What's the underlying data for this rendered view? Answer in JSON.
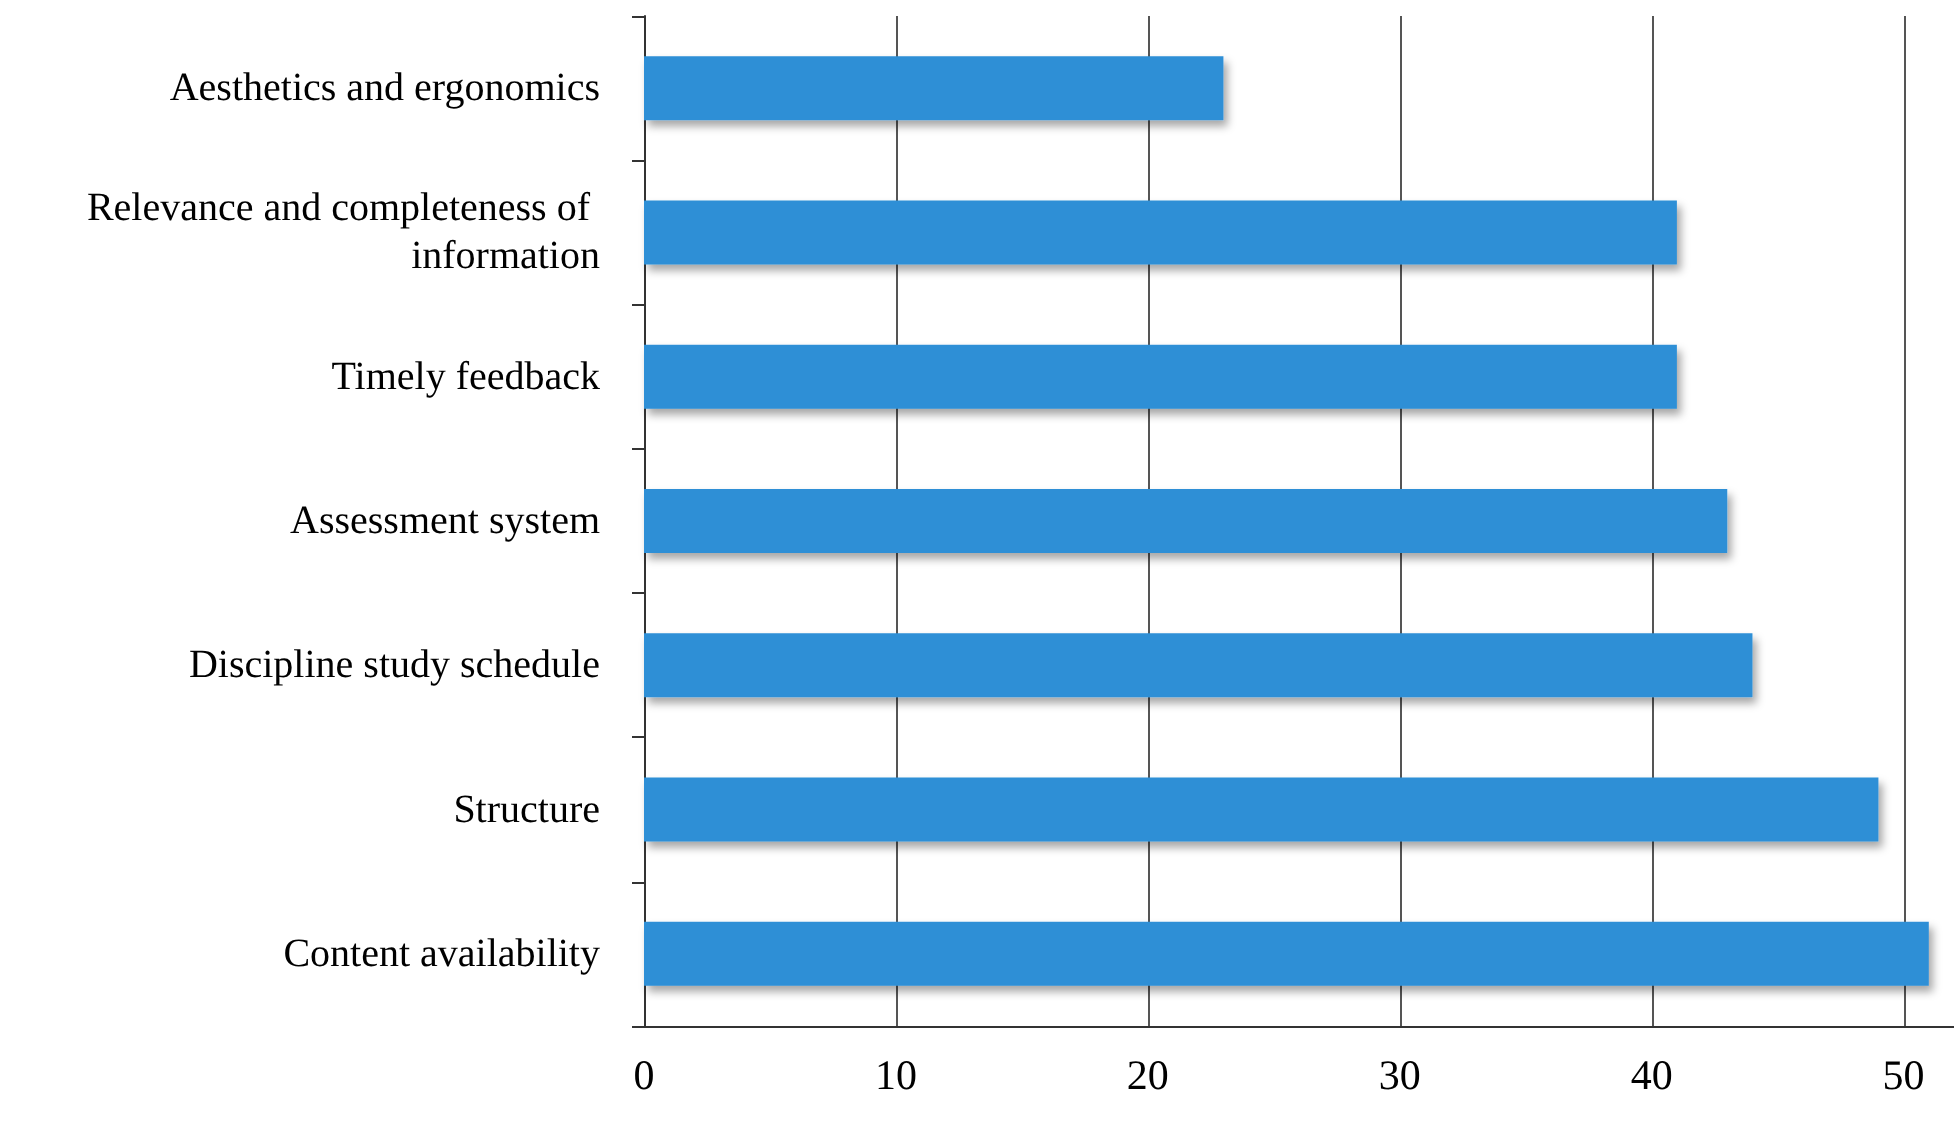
{
  "chart_data": {
    "type": "bar",
    "orientation": "horizontal",
    "categories": [
      "Aesthetics and ergonomics",
      "Relevance and completeness of information",
      "Timely feedback",
      "Assessment system",
      "Discipline study schedule",
      "Structure",
      "Content availability"
    ],
    "values": [
      23,
      41,
      41,
      43,
      44,
      49,
      51
    ],
    "color": "#2e8fd6",
    "xlim": [
      0,
      52
    ],
    "xticks": [
      0,
      10,
      20,
      30,
      40,
      50
    ],
    "grid": "x"
  }
}
